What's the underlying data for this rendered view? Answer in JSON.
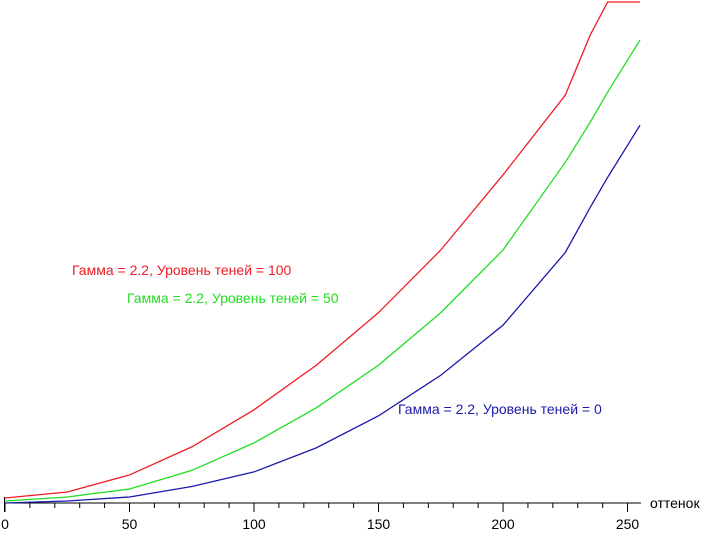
{
  "chart_data": {
    "type": "line",
    "x": [
      0,
      25,
      50,
      75,
      100,
      125,
      150,
      175,
      200,
      225,
      235,
      242,
      255
    ],
    "series": [
      {
        "name": "Гамма = 2.2, Уровень теней = 100",
        "color": "#ee1c25",
        "values": [
          1,
          2.2,
          5.6,
          11.2,
          18.6,
          27.5,
          38,
          50.5,
          65.5,
          81.4,
          93.4,
          100,
          100
        ]
      },
      {
        "name": "Гамма = 2.2, Уровень теней = 50",
        "color": "#22dd22",
        "values": [
          0.4,
          1.2,
          2.8,
          6.5,
          12,
          19,
          27.5,
          38,
          50.5,
          68,
          76,
          82,
          92.4
        ]
      },
      {
        "name": "Гамма = 2.2, Уровень теней = 0",
        "color": "#1a1aaa",
        "values": [
          0,
          0.4,
          1.2,
          3.3,
          6.2,
          11,
          17.4,
          25.5,
          35.5,
          50,
          59,
          65,
          75.4
        ]
      }
    ],
    "xlabel": "оттенок",
    "xlim": [
      0,
      255
    ],
    "ylim": [
      0,
      100
    ],
    "xticks": [
      0,
      50,
      100,
      150,
      200,
      250
    ],
    "xminorticks": [
      10,
      20,
      30,
      40,
      60,
      70,
      80,
      90,
      110,
      120,
      130,
      140,
      160,
      170,
      180,
      190,
      210,
      220,
      230,
      240
    ]
  }
}
